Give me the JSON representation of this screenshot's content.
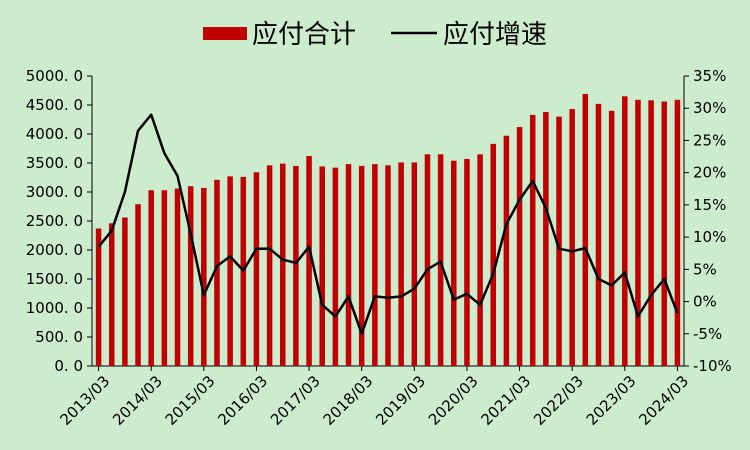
{
  "background_color": "#cdeccd",
  "chart_data": {
    "type": "bar+line",
    "title": "",
    "x": [
      "2013/03",
      "2013/06",
      "2013/09",
      "2013/12",
      "2014/03",
      "2014/06",
      "2014/09",
      "2014/12",
      "2015/03",
      "2015/06",
      "2015/09",
      "2015/12",
      "2016/03",
      "2016/06",
      "2016/09",
      "2016/12",
      "2017/03",
      "2017/06",
      "2017/09",
      "2017/12",
      "2018/03",
      "2018/06",
      "2018/09",
      "2018/12",
      "2019/03",
      "2019/06",
      "2019/09",
      "2019/12",
      "2020/03",
      "2020/06",
      "2020/09",
      "2020/12",
      "2021/03",
      "2021/06",
      "2021/09",
      "2021/12",
      "2022/03",
      "2022/06",
      "2022/09",
      "2022/12",
      "2023/03",
      "2023/06",
      "2023/09",
      "2023/12",
      "2024/03"
    ],
    "x_tick_labels": [
      "2013/03",
      "2014/03",
      "2015/03",
      "2016/03",
      "2017/03",
      "2018/03",
      "2019/03",
      "2020/03",
      "2021/03",
      "2022/03",
      "2023/03",
      "2024/03"
    ],
    "y_left": {
      "ylim": [
        0,
        5000
      ],
      "tick_labels": [
        "0. 0",
        "500. 0",
        "1000. 0",
        "1500. 0",
        "2000. 0",
        "2500. 0",
        "3000. 0",
        "3500. 0",
        "4000. 0",
        "4500. 0",
        "5000. 0"
      ]
    },
    "y_right": {
      "ylim": [
        -10,
        35
      ],
      "tick_labels": [
        "-10%",
        "-5%",
        "0%",
        "5%",
        "10%",
        "15%",
        "20%",
        "25%",
        "30%",
        "35%"
      ]
    },
    "series": [
      {
        "name": "应付合计",
        "kind": "bar",
        "axis": "left",
        "color": "#c00000",
        "values": [
          2370,
          2460,
          2560,
          2790,
          3030,
          3030,
          3060,
          3100,
          3070,
          3210,
          3270,
          3260,
          3340,
          3460,
          3490,
          3450,
          3620,
          3440,
          3420,
          3480,
          3450,
          3480,
          3460,
          3510,
          3510,
          3650,
          3650,
          3540,
          3570,
          3650,
          3830,
          3970,
          4120,
          4330,
          4380,
          4300,
          4430,
          4690,
          4520,
          4400,
          4650,
          4590,
          4580,
          4560,
          4590
        ]
      },
      {
        "name": "应付增速",
        "kind": "line",
        "axis": "right",
        "color": "#000000",
        "values": [
          8.5,
          11.0,
          17.0,
          26.5,
          29.0,
          23.0,
          19.5,
          10.5,
          1.0,
          5.5,
          7.0,
          4.8,
          8.2,
          8.2,
          6.5,
          6.0,
          8.5,
          -0.5,
          -2.3,
          0.8,
          -5.0,
          0.8,
          0.6,
          0.8,
          2.0,
          5.0,
          6.2,
          0.3,
          1.2,
          -0.5,
          4.3,
          12.0,
          15.8,
          18.7,
          14.5,
          8.2,
          7.8,
          8.3,
          3.5,
          2.5,
          4.5,
          -2.3,
          1.0,
          3.5,
          -1.8
        ]
      }
    ],
    "legend_position": "top",
    "grid": false
  }
}
